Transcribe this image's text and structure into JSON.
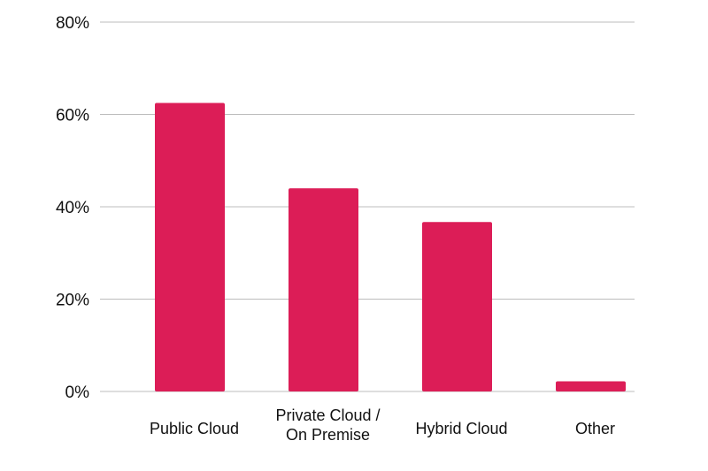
{
  "chart_data": {
    "type": "bar",
    "categories": [
      "Public Cloud",
      "Private Cloud / On Premise",
      "Hybrid Cloud",
      "Other"
    ],
    "category_lines": [
      [
        "Public Cloud"
      ],
      [
        "Private Cloud /",
        "On Premise"
      ],
      [
        "Hybrid Cloud"
      ],
      [
        "Other"
      ]
    ],
    "values": [
      62.5,
      44,
      36.7,
      2.2
    ],
    "ylim": [
      0,
      80
    ],
    "yticks": [
      0,
      20,
      40,
      60,
      80
    ],
    "ytick_labels": [
      "0%",
      "20%",
      "40%",
      "60%",
      "80%"
    ],
    "y_unit": "%",
    "grid": true,
    "bar_color": "#dc1d57",
    "grid_color": "#bdbdbd",
    "title": "",
    "xlabel": "",
    "ylabel": ""
  }
}
